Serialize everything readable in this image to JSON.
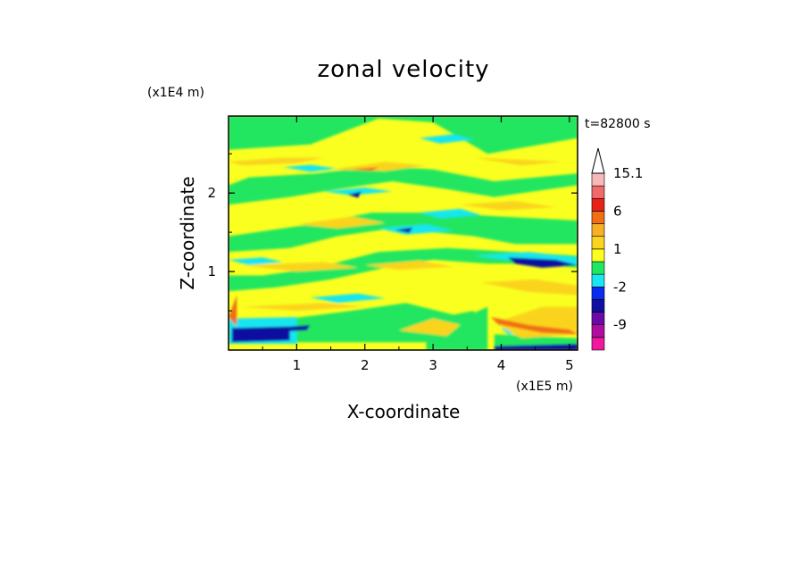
{
  "chart_data": {
    "type": "heatmap",
    "title": "zonal velocity",
    "xlabel": "X-coordinate",
    "ylabel": "Z-coordinate",
    "x_unit": "(x1E5 m)",
    "y_unit": "(x1E4 m)",
    "time_label": "t=82800 s",
    "xlim": [
      0,
      5.12
    ],
    "ylim": [
      0,
      2.98
    ],
    "x_ticks": [
      "1",
      "2",
      "3",
      "4",
      "5"
    ],
    "x_tick_values": [
      1,
      2,
      3,
      4,
      5
    ],
    "y_ticks": [
      "1",
      "2"
    ],
    "y_tick_values": [
      1,
      2
    ],
    "colorbar": {
      "labels": [
        "15.1",
        "6",
        "1",
        "-2",
        "-9"
      ],
      "levels": [
        -15,
        -12,
        -9,
        -6,
        -3,
        -2,
        -1,
        0,
        1,
        2,
        3,
        6,
        9,
        12,
        15.1
      ],
      "colors": [
        "#f0189e",
        "#b00c9e",
        "#6a0aa8",
        "#1010a0",
        "#0a2cf0",
        "#19e6f0",
        "#20e660",
        "#faff20",
        "#fad41e",
        "#f5b028",
        "#f06e14",
        "#e82218",
        "#f06a6a",
        "#f7b8b8"
      ],
      "extend": "max",
      "top_arrow_color": "#ffffff"
    },
    "field_colors": {
      "strong_negative": "#1010a0",
      "negative": "#0a2cf0",
      "weak_negative": "#19e6f0",
      "near_zero": "#20e660",
      "weak_positive": "#faff20",
      "positive": "#fad41e",
      "moderate_positive": "#f5b028",
      "strong_positive": "#f06e14"
    },
    "dominant_value": 0.5
  }
}
